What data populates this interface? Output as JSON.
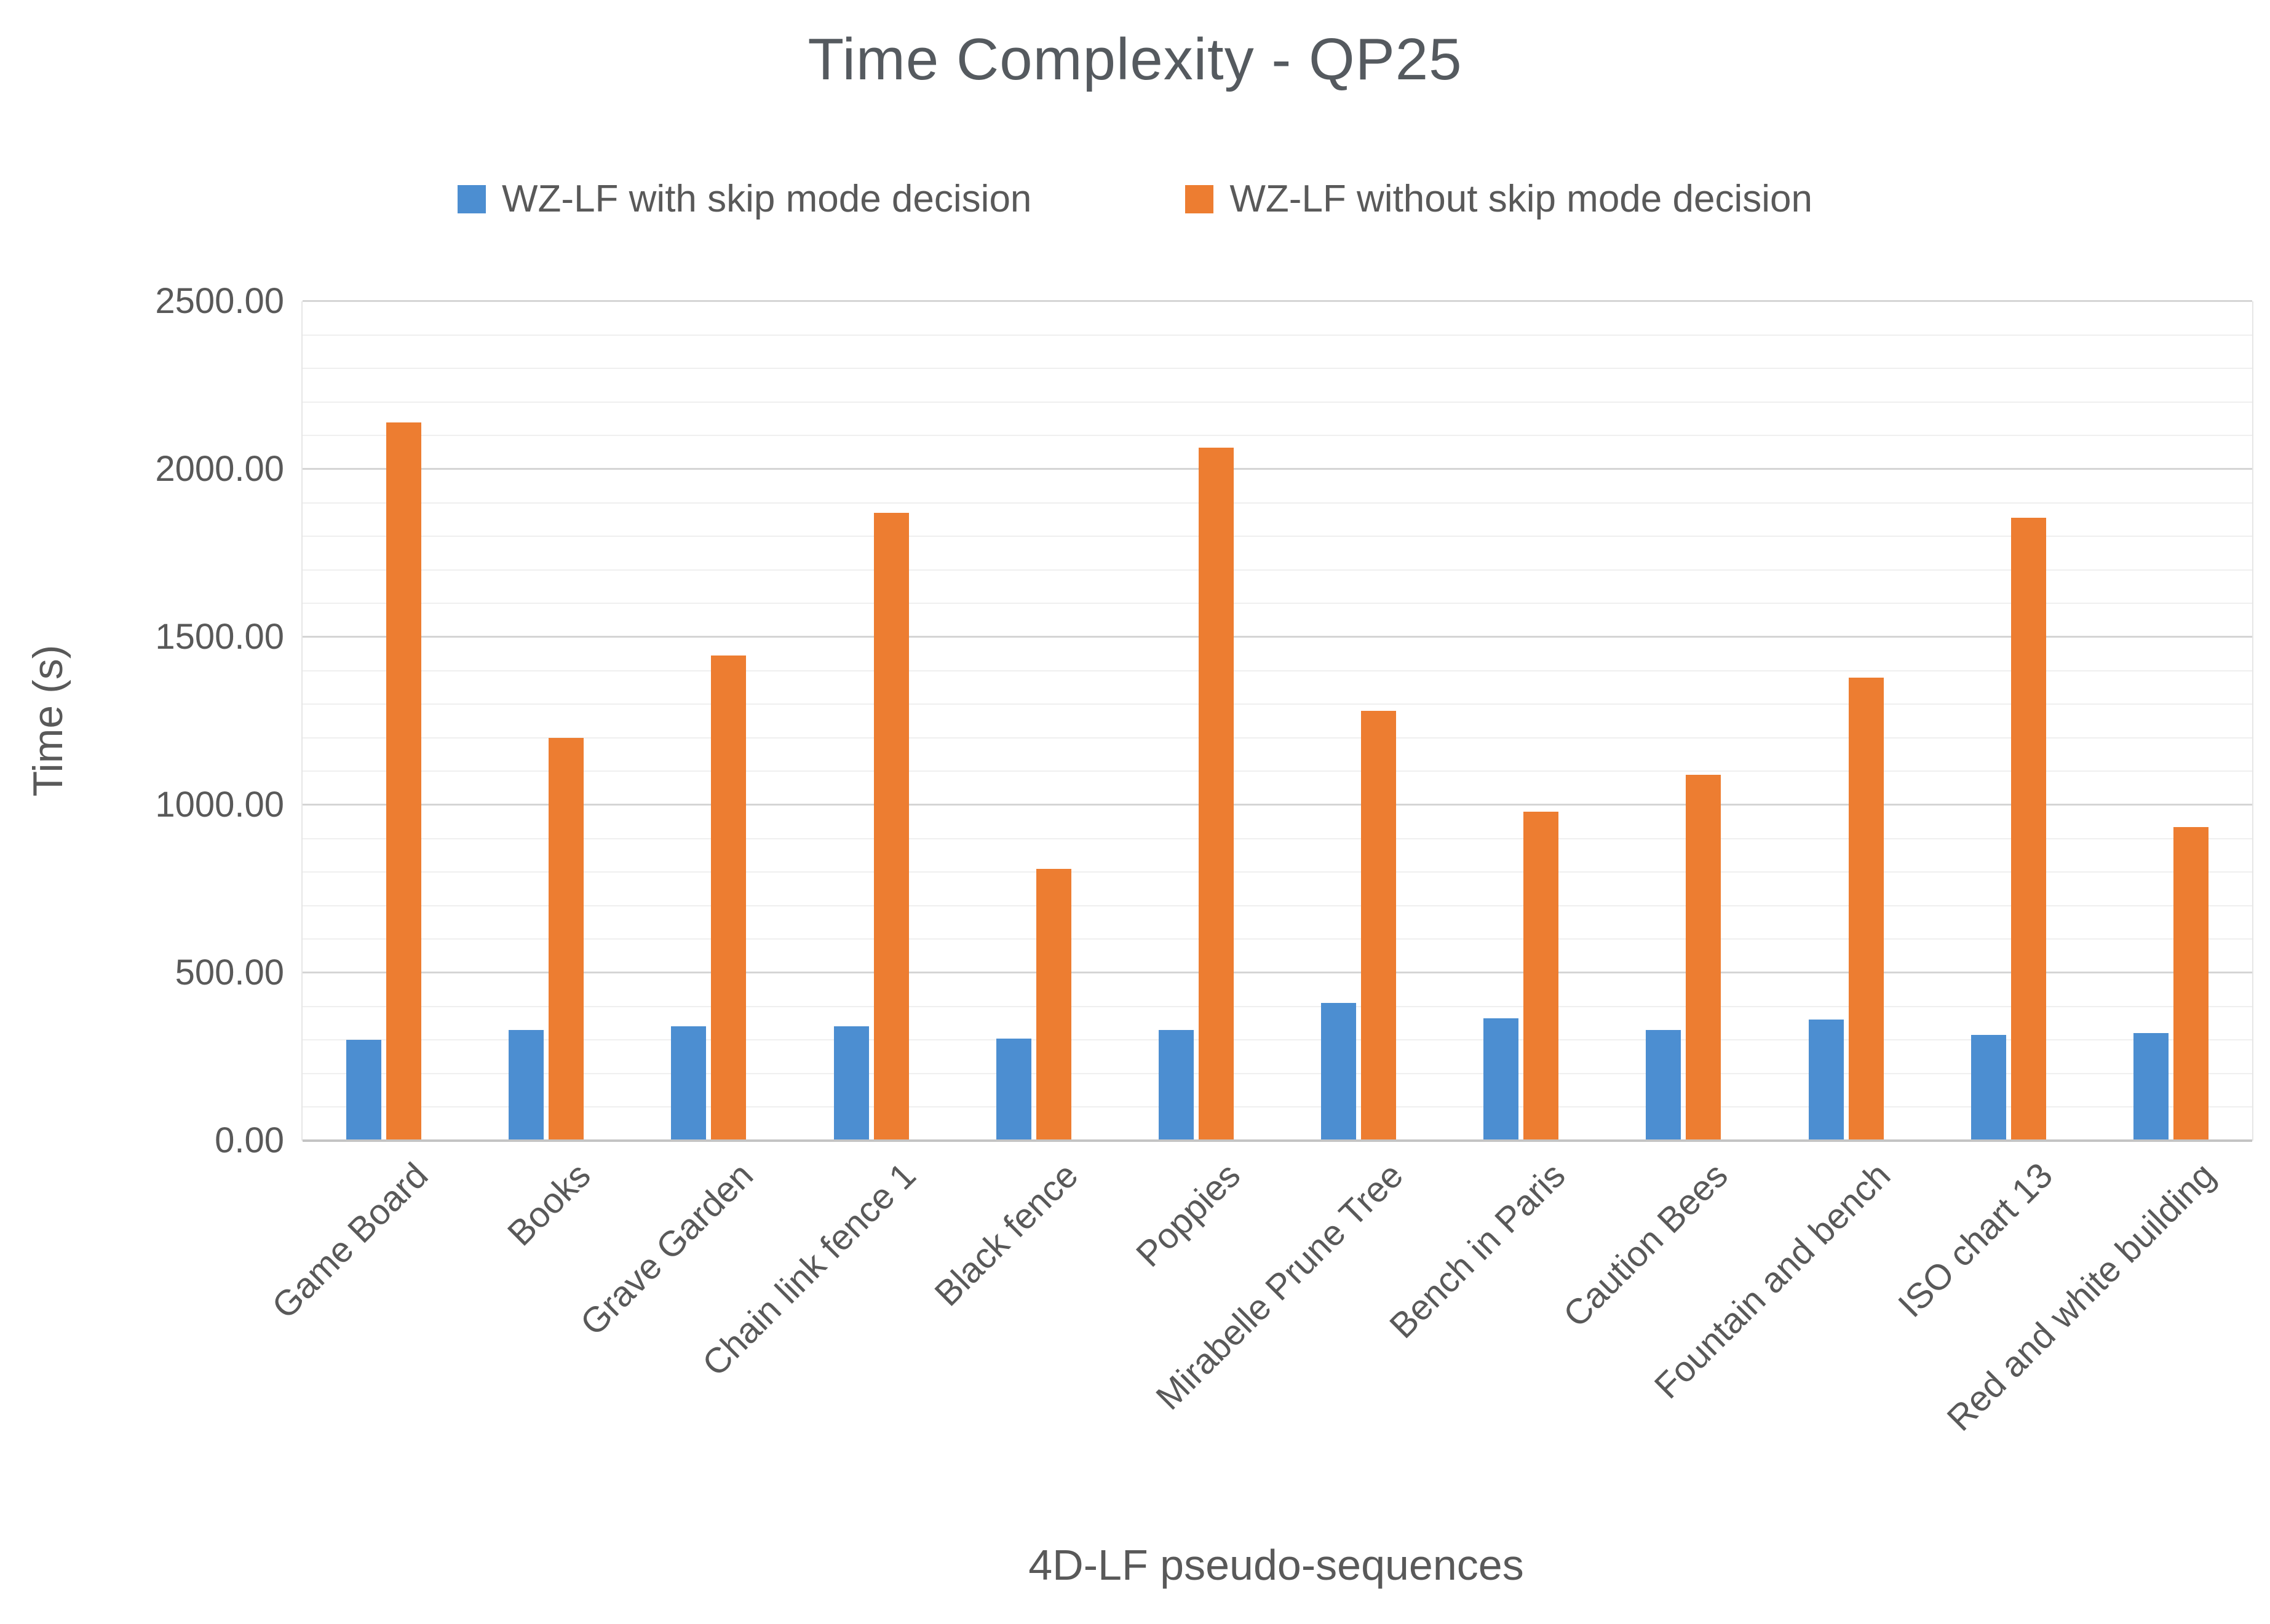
{
  "chart_data": {
    "type": "bar",
    "title": "Time Complexity - QP25",
    "xlabel": "4D-LF pseudo-sequences",
    "ylabel": "Time (s)",
    "ylim": [
      0,
      2500
    ],
    "y_major_step": 500,
    "y_minor_step": 100,
    "y_tick_labels": [
      "0.00",
      "500.00",
      "1000.00",
      "1500.00",
      "2000.00",
      "2500.00"
    ],
    "grid": "horizontal-minor-and-major",
    "legend_position": "top-center",
    "categories": [
      "Game Board",
      "Books",
      "Grave Garden",
      "Chain link fence 1",
      "Black fence",
      "Poppies",
      "Mirabelle Prune Tree",
      "Bench in Paris",
      "Caution Bees",
      "Fountain and bench",
      "ISO chart 13",
      "Red and white building"
    ],
    "series": [
      {
        "name": "WZ-LF with skip mode decision",
        "color": "#4C8ED1",
        "values": [
          300,
          330,
          340,
          340,
          305,
          330,
          410,
          365,
          330,
          360,
          315,
          320
        ]
      },
      {
        "name": "WZ-LF without skip mode decision",
        "color": "#ED7D31",
        "values": [
          2140,
          1200,
          1445,
          1870,
          810,
          2065,
          1280,
          980,
          1090,
          1380,
          1855,
          935
        ]
      }
    ]
  },
  "colors": {
    "background": "#ffffff",
    "title_text": "#555a5f",
    "axis_text": "#595959",
    "major_gridline": "#d5d5d5",
    "minor_gridline": "#efefef",
    "axis_line": "#c4c4c4"
  }
}
